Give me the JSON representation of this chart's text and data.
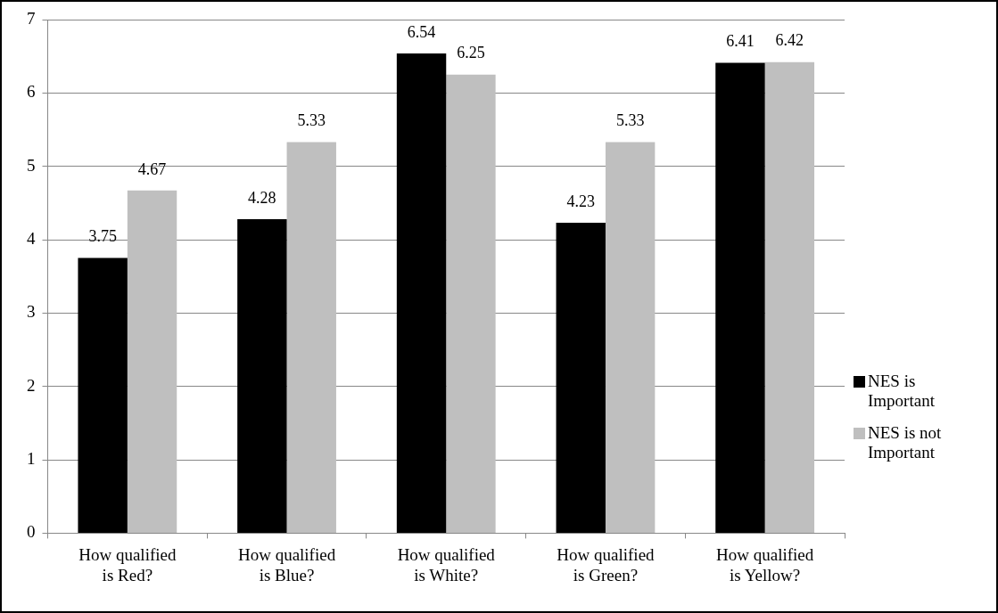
{
  "chart_data": {
    "type": "bar",
    "categories": [
      "How qualified is Red?",
      "How qualified is Blue?",
      "How qualified is White?",
      "How qualified is Green?",
      "How qualified is Yellow?"
    ],
    "series": [
      {
        "name": "NES is Important",
        "color": "#000000",
        "values": [
          3.75,
          4.28,
          6.54,
          4.23,
          6.41
        ]
      },
      {
        "name": "NES is not Important",
        "color": "#bfbfbf",
        "values": [
          4.67,
          5.33,
          6.25,
          5.33,
          6.42
        ]
      }
    ],
    "ylim": [
      0,
      7
    ],
    "yticks": [
      0,
      1,
      2,
      3,
      4,
      5,
      6,
      7
    ],
    "grid": "y",
    "legend": "right",
    "data_labels": true
  }
}
